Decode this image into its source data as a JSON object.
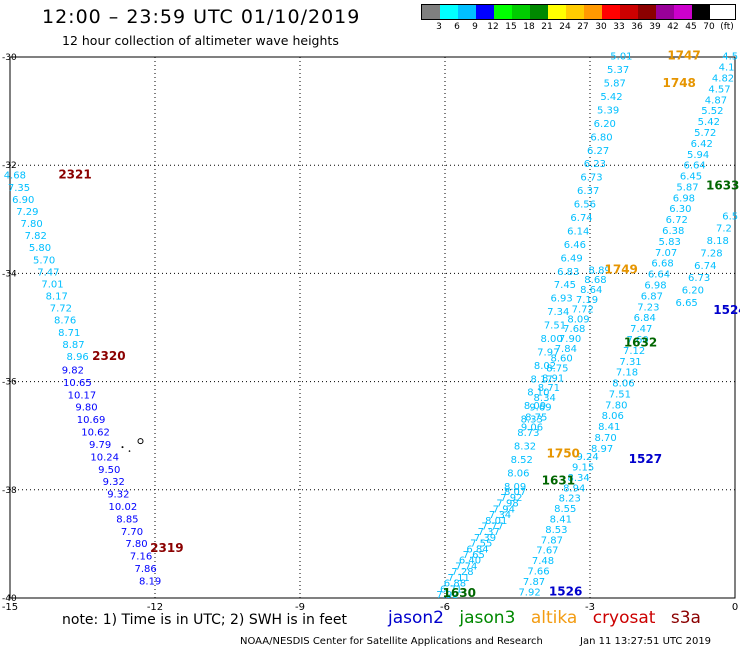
{
  "title": "12:00 – 23:59 UTC 01/10/2019",
  "subtitle": "12 hour collection of altimeter wave heights",
  "legend": {
    "colors": [
      "#7f7f7f",
      "#00ffff",
      "#00bfff",
      "#0000ff",
      "#00ff00",
      "#00cc00",
      "#008800",
      "#ffff00",
      "#ffcc00",
      "#ff9900",
      "#ff0000",
      "#cc0000",
      "#8b0000",
      "#990099",
      "#cc00cc",
      "#000000"
    ],
    "labels": [
      "3",
      "6",
      "9",
      "12",
      "15",
      "18",
      "21",
      "24",
      "27",
      "30",
      "33",
      "36",
      "39",
      "42",
      "45",
      "70",
      "(ft)"
    ]
  },
  "note": "note: 1) Time is in UTC; 2) SWH is in feet",
  "satellites": [
    "jason2",
    "jason3",
    "altika",
    "cryosat",
    "s3a"
  ],
  "satellite_colors": {
    "jason2": "#0000cc",
    "jason3": "#008800",
    "altika": "#f39c12",
    "cryosat": "#cc0000",
    "s3a": "#8b0000"
  },
  "footer": {
    "credit": "NOAA/NESDIS Center for Satellite Applications and Research",
    "timestamp": "Jan 11 13:27:51 UTC 2019"
  },
  "map": {
    "lon_range": [
      -15,
      0
    ],
    "lat_range": [
      -40,
      -30
    ],
    "lon_ticks": [
      "-15",
      "-12",
      "-9",
      "-6",
      "-3",
      "0"
    ],
    "lat_ticks": [
      "-30",
      "-32",
      "-34",
      "-36",
      "-38",
      "-40"
    ],
    "time_labels": [
      {
        "text": "1747",
        "color": "#e69500",
        "lon": -1.4,
        "lat": -30.05
      },
      {
        "text": "1748",
        "color": "#e69500",
        "lon": -1.5,
        "lat": -30.55
      },
      {
        "text": "2321",
        "color": "#8b0000",
        "lon": -14.0,
        "lat": -32.25
      },
      {
        "text": "1633",
        "color": "#006600",
        "lon": -0.6,
        "lat": -32.45
      },
      {
        "text": "1749",
        "color": "#e69500",
        "lon": -2.7,
        "lat": -34.0
      },
      {
        "text": "1524",
        "color": "#0000cc",
        "lon": -0.45,
        "lat": -34.75
      },
      {
        "text": "1632",
        "color": "#006600",
        "lon": -2.3,
        "lat": -35.35
      },
      {
        "text": "2320",
        "color": "#8b0000",
        "lon": -13.3,
        "lat": -35.6
      },
      {
        "text": "1750",
        "color": "#e69500",
        "lon": -3.9,
        "lat": -37.4
      },
      {
        "text": "1527",
        "color": "#0000cc",
        "lon": -2.2,
        "lat": -37.5
      },
      {
        "text": "1631",
        "color": "#006600",
        "lon": -4.0,
        "lat": -37.9
      },
      {
        "text": "2319",
        "color": "#8b0000",
        "lon": -12.1,
        "lat": -39.15
      },
      {
        "text": "1630",
        "color": "#006600",
        "lon": -6.05,
        "lat": -39.98
      },
      {
        "text": "1526",
        "color": "#0000cc",
        "lon": -3.85,
        "lat": -39.95
      }
    ],
    "tracks": [
      {
        "name": "s3a-2320",
        "values": [
          "4.68",
          "7.35",
          "6.90",
          "7.29",
          "7.80",
          "7.82",
          "5.80",
          "5.70",
          "7.47",
          "7.01",
          "8.17",
          "7.72",
          "8.76",
          "8.71",
          "8.87",
          "8.96"
        ],
        "color": "#00bfff",
        "start": [
          -14.9,
          -32.25
        ],
        "end": [
          -13.6,
          -35.6
        ]
      },
      {
        "name": "s3a-2319",
        "values": [
          "9.82",
          "10.65",
          "10.17",
          "9.80",
          "10.69",
          "10.62",
          "9.79",
          "10.24",
          "9.50",
          "9.32",
          "9.32",
          "10.02",
          "8.85",
          "7.70",
          "7.80",
          "7.16",
          "7.86",
          "8.19"
        ],
        "color": "#0000ff",
        "start": [
          -13.7,
          -35.85
        ],
        "end": [
          -12.1,
          -39.75
        ]
      },
      {
        "name": "altika-1748",
        "values": [
          "5.01",
          "5.37",
          "5.87",
          "5.42",
          "5.39",
          "6.20",
          "6.80",
          "6.27",
          "6.23",
          "6.73",
          "6.37",
          "6.56",
          "6.74",
          "6.14",
          "6.46",
          "6.49",
          "6.83",
          "7.45",
          "6.93",
          "7.34",
          "7.51",
          "8.00",
          "7.97",
          "8.02",
          "8.17",
          "8.10",
          "8.09",
          "8.33",
          "8.73",
          "8.32",
          "8.52",
          "8.06",
          "8.09"
        ],
        "color": "#00bfff",
        "start": [
          -2.35,
          -30.05
        ],
        "end": [
          -4.55,
          -38.0
        ]
      },
      {
        "name": "altika-1749",
        "values": [
          "8.89",
          "8.68",
          "8.64",
          "7.19",
          "7.72",
          "8.09",
          "7.68",
          "7.90",
          "7.84",
          "8.60",
          "8.75",
          "8.91",
          "8.71",
          "8.34",
          "9.69",
          "8.75",
          "9.06"
        ],
        "color": "#00bfff",
        "start": [
          -2.8,
          -34.0
        ],
        "end": [
          -4.2,
          -36.9
        ]
      },
      {
        "name": "jason3-1631",
        "values": [
          "8.07",
          "7.92",
          "7.98",
          "7.94",
          "7.34",
          "8.01",
          "7.77",
          "7.37",
          "7.39",
          "7.55",
          "6.84",
          "7.65",
          "6.40",
          "7.74",
          "7.28",
          "7.11",
          "6.88",
          "6.71",
          "7.92"
        ],
        "color": "#00bfff",
        "start": [
          -4.55,
          -38.1
        ],
        "end": [
          -5.95,
          -40.0
        ]
      },
      {
        "name": "jason3-1632",
        "values": [
          "4.5",
          "4.1",
          "4.82",
          "4.57",
          "4.87",
          "5.52",
          "5.42",
          "5.72",
          "6.42",
          "5.94",
          "6.64",
          "6.45",
          "5.87",
          "6.98",
          "6.30",
          "6.72",
          "6.38",
          "5.83",
          "7.07",
          "6.68",
          "6.64",
          "6.98",
          "6.87",
          "7.23",
          "6.84",
          "7.47",
          "7.60",
          "7.12",
          "7.31",
          "7.18",
          "8.06",
          "7.51",
          "7.80",
          "8.06",
          "8.41",
          "8.70",
          "8.97"
        ],
        "color": "#00bfff",
        "start": [
          -0.1,
          -30.05
        ],
        "end": [
          -2.75,
          -37.3
        ]
      },
      {
        "name": "jason2-1527",
        "values": [
          "9.24",
          "9.15",
          "8.34",
          "8.94",
          "8.23",
          "8.55",
          "8.41",
          "8.53",
          "7.87",
          "7.67",
          "7.48",
          "7.66",
          "7.87",
          "7.92"
        ],
        "color": "#00bfff",
        "start": [
          -3.05,
          -37.45
        ],
        "end": [
          -4.25,
          -39.95
        ]
      },
      {
        "name": "jason3-1633",
        "values": [
          "6.5",
          "7.2",
          "8.18",
          "7.28",
          "6.74",
          "6.73",
          "6.20",
          "6.65"
        ],
        "color": "#00bfff",
        "start": [
          -0.1,
          -33.0
        ],
        "end": [
          -1.0,
          -34.6
        ]
      }
    ],
    "islands": [
      {
        "name": "island-1",
        "lon": -12.3,
        "lat": -37.1
      }
    ]
  }
}
